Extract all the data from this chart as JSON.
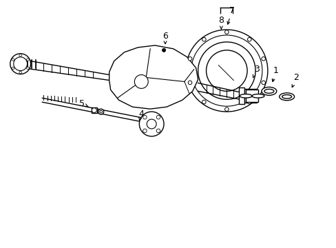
{
  "bg_color": "#ffffff",
  "line_color": "#000000",
  "line_width": 1.0,
  "fig_width": 4.89,
  "fig_height": 3.6
}
